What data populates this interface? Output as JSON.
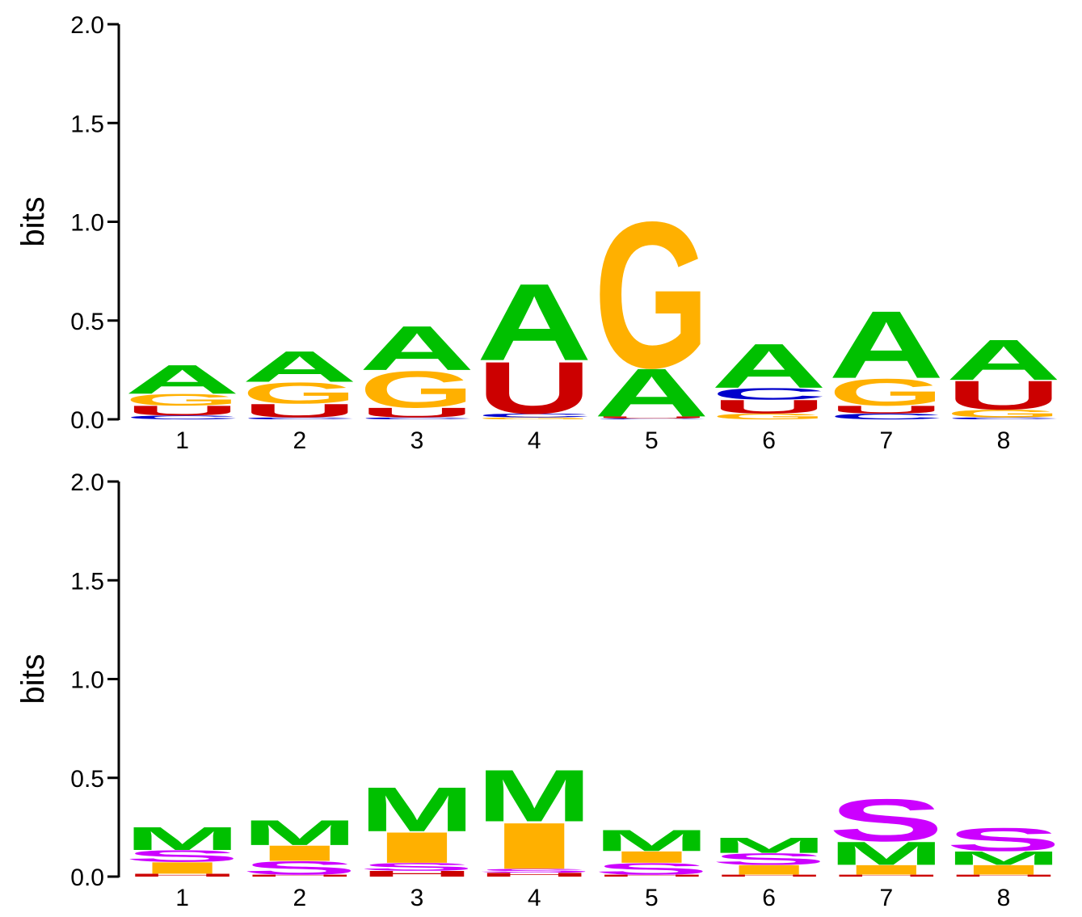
{
  "chart_data": [
    {
      "type": "sequence-logo",
      "ylabel": "bits",
      "ylim": [
        0,
        2.0
      ],
      "yticks": [
        "0.0",
        "0.5",
        "1.0",
        "1.5",
        "2.0"
      ],
      "positions": [
        "1",
        "2",
        "3",
        "4",
        "5",
        "6",
        "7",
        "8"
      ],
      "colors": {
        "A": "#00c000",
        "G": "#ffb000",
        "U": "#cc0000",
        "C": "#0000cc"
      },
      "stacks": [
        [
          {
            "l": "C",
            "h": 0.02
          },
          {
            "l": "U",
            "h": 0.05
          },
          {
            "l": "G",
            "h": 0.06
          },
          {
            "l": "A",
            "h": 0.15
          }
        ],
        [
          {
            "l": "C",
            "h": 0.01
          },
          {
            "l": "U",
            "h": 0.07
          },
          {
            "l": "G",
            "h": 0.11
          },
          {
            "l": "A",
            "h": 0.16
          }
        ],
        [
          {
            "l": "C",
            "h": 0.01
          },
          {
            "l": "U",
            "h": 0.05
          },
          {
            "l": "G",
            "h": 0.19
          },
          {
            "l": "A",
            "h": 0.23
          }
        ],
        [
          {
            "l": "G",
            "h": 0.01
          },
          {
            "l": "C",
            "h": 0.02
          },
          {
            "l": "U",
            "h": 0.27
          },
          {
            "l": "A",
            "h": 0.4
          }
        ],
        [
          {
            "l": "C",
            "h": 0.005
          },
          {
            "l": "U",
            "h": 0.01
          },
          {
            "l": "A",
            "h": 0.25
          },
          {
            "l": "G",
            "h": 0.76
          }
        ],
        [
          {
            "l": "G",
            "h": 0.03
          },
          {
            "l": "U",
            "h": 0.07
          },
          {
            "l": "C",
            "h": 0.06
          },
          {
            "l": "A",
            "h": 0.23
          }
        ],
        [
          {
            "l": "C",
            "h": 0.03
          },
          {
            "l": "U",
            "h": 0.04
          },
          {
            "l": "G",
            "h": 0.14
          },
          {
            "l": "A",
            "h": 0.35
          }
        ],
        [
          {
            "l": "C",
            "h": 0.01
          },
          {
            "l": "G",
            "h": 0.04
          },
          {
            "l": "U",
            "h": 0.15
          },
          {
            "l": "A",
            "h": 0.21
          }
        ]
      ]
    },
    {
      "type": "sequence-logo",
      "ylabel": "bits",
      "ylim": [
        0,
        2.0
      ],
      "yticks": [
        "0.0",
        "0.5",
        "1.0",
        "1.5",
        "2.0"
      ],
      "positions": [
        "1",
        "2",
        "3",
        "4",
        "5",
        "6",
        "7",
        "8"
      ],
      "colors": {
        "M": "#00c000",
        "I": "#ffb000",
        "S": "#cc00ff",
        "H": "#cc0000"
      },
      "stacks": [
        [
          {
            "l": "H",
            "h": 0.015
          },
          {
            "l": "I",
            "h": 0.06
          },
          {
            "l": "S",
            "h": 0.06
          },
          {
            "l": "M",
            "h": 0.12
          }
        ],
        [
          {
            "l": "H",
            "h": 0.01
          },
          {
            "l": "S",
            "h": 0.07
          },
          {
            "l": "I",
            "h": 0.08
          },
          {
            "l": "M",
            "h": 0.13
          }
        ],
        [
          {
            "l": "H",
            "h": 0.03
          },
          {
            "l": "S",
            "h": 0.04
          },
          {
            "l": "I",
            "h": 0.16
          },
          {
            "l": "M",
            "h": 0.23
          }
        ],
        [
          {
            "l": "H",
            "h": 0.02
          },
          {
            "l": "S",
            "h": 0.02
          },
          {
            "l": "I",
            "h": 0.24
          },
          {
            "l": "M",
            "h": 0.27
          }
        ],
        [
          {
            "l": "H",
            "h": 0.01
          },
          {
            "l": "S",
            "h": 0.06
          },
          {
            "l": "I",
            "h": 0.06
          },
          {
            "l": "M",
            "h": 0.11
          }
        ],
        [
          {
            "l": "H",
            "h": 0.01
          },
          {
            "l": "I",
            "h": 0.05
          },
          {
            "l": "S",
            "h": 0.06
          },
          {
            "l": "M",
            "h": 0.08
          }
        ],
        [
          {
            "l": "H",
            "h": 0.01
          },
          {
            "l": "I",
            "h": 0.05
          },
          {
            "l": "M",
            "h": 0.12
          },
          {
            "l": "S",
            "h": 0.22
          }
        ],
        [
          {
            "l": "H",
            "h": 0.01
          },
          {
            "l": "I",
            "h": 0.05
          },
          {
            "l": "M",
            "h": 0.07
          },
          {
            "l": "S",
            "h": 0.12
          }
        ]
      ]
    }
  ]
}
